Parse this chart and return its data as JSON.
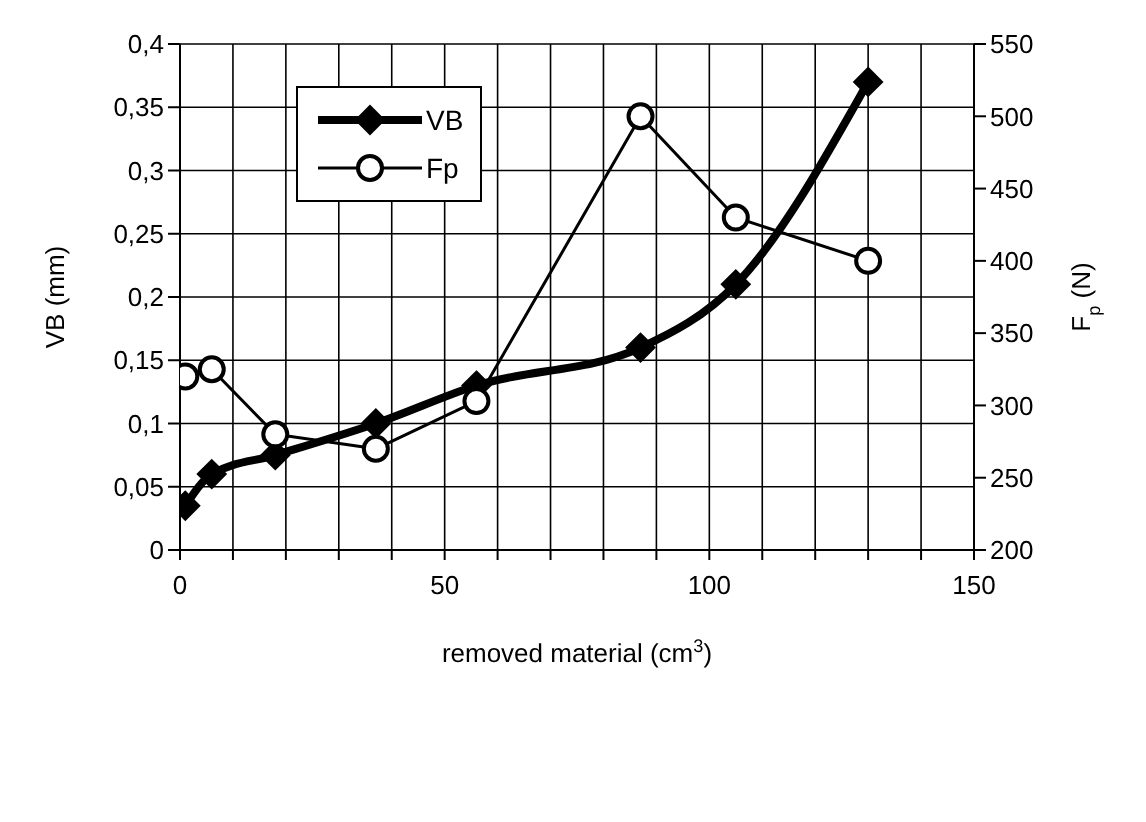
{
  "chart_data": {
    "type": "line",
    "xlabel": "removed material (cm$^{3}$)",
    "ylabel": "VB (mm)",
    "y2label": "F$_{p}$ (N)",
    "series": [
      {
        "name": "VB",
        "color": "#000000",
        "marker": "diamond",
        "x": [
          1,
          6,
          18,
          37,
          56,
          87,
          105,
          130
        ],
        "values": [
          0.035,
          0.06,
          0.075,
          0.1,
          0.13,
          0.16,
          0.21,
          0.37
        ]
      },
      {
        "name": "Fp",
        "color": "#000000",
        "marker": "circle",
        "axis": "y2",
        "x": [
          1,
          6,
          18,
          37,
          56,
          87,
          105,
          130
        ],
        "values": [
          320,
          325,
          280,
          270,
          303,
          500,
          430,
          400
        ]
      }
    ],
    "xlim": [
      0,
      150
    ],
    "xticks": [
      0,
      {
        "value": 10,
        "label": null
      },
      {
        "value": 20,
        "label": null
      },
      {
        "value": 30,
        "label": null
      },
      {
        "value": 40,
        "label": null
      },
      50,
      {
        "value": 60,
        "label": null
      },
      {
        "value": 70,
        "label": null
      },
      {
        "value": 80,
        "label": null
      },
      {
        "value": 90,
        "label": null
      },
      100,
      {
        "value": 110,
        "label": null
      },
      {
        "value": 120,
        "label": null
      },
      {
        "value": 130,
        "label": null
      },
      {
        "value": 140,
        "label": null
      },
      150
    ],
    "ylim": [
      0,
      0.4
    ],
    "yticks": [
      0,
      {
        "value": 0.05,
        "label": "0,05"
      },
      {
        "value": 0.1,
        "label": "0,1"
      },
      {
        "value": 0.15,
        "label": "0,15"
      },
      {
        "value": 0.2,
        "label": "0,2"
      },
      {
        "value": 0.25,
        "label": "0,25"
      },
      {
        "value": 0.3,
        "label": "0,3"
      },
      {
        "value": 0.35,
        "label": "0,35"
      },
      {
        "value": 0.4,
        "label": "0,4"
      }
    ],
    "y2lim": [
      200,
      550
    ],
    "y2ticks": [
      200,
      250,
      300,
      350,
      400,
      450,
      500,
      550
    ],
    "grid": true,
    "legend": "top left"
  }
}
